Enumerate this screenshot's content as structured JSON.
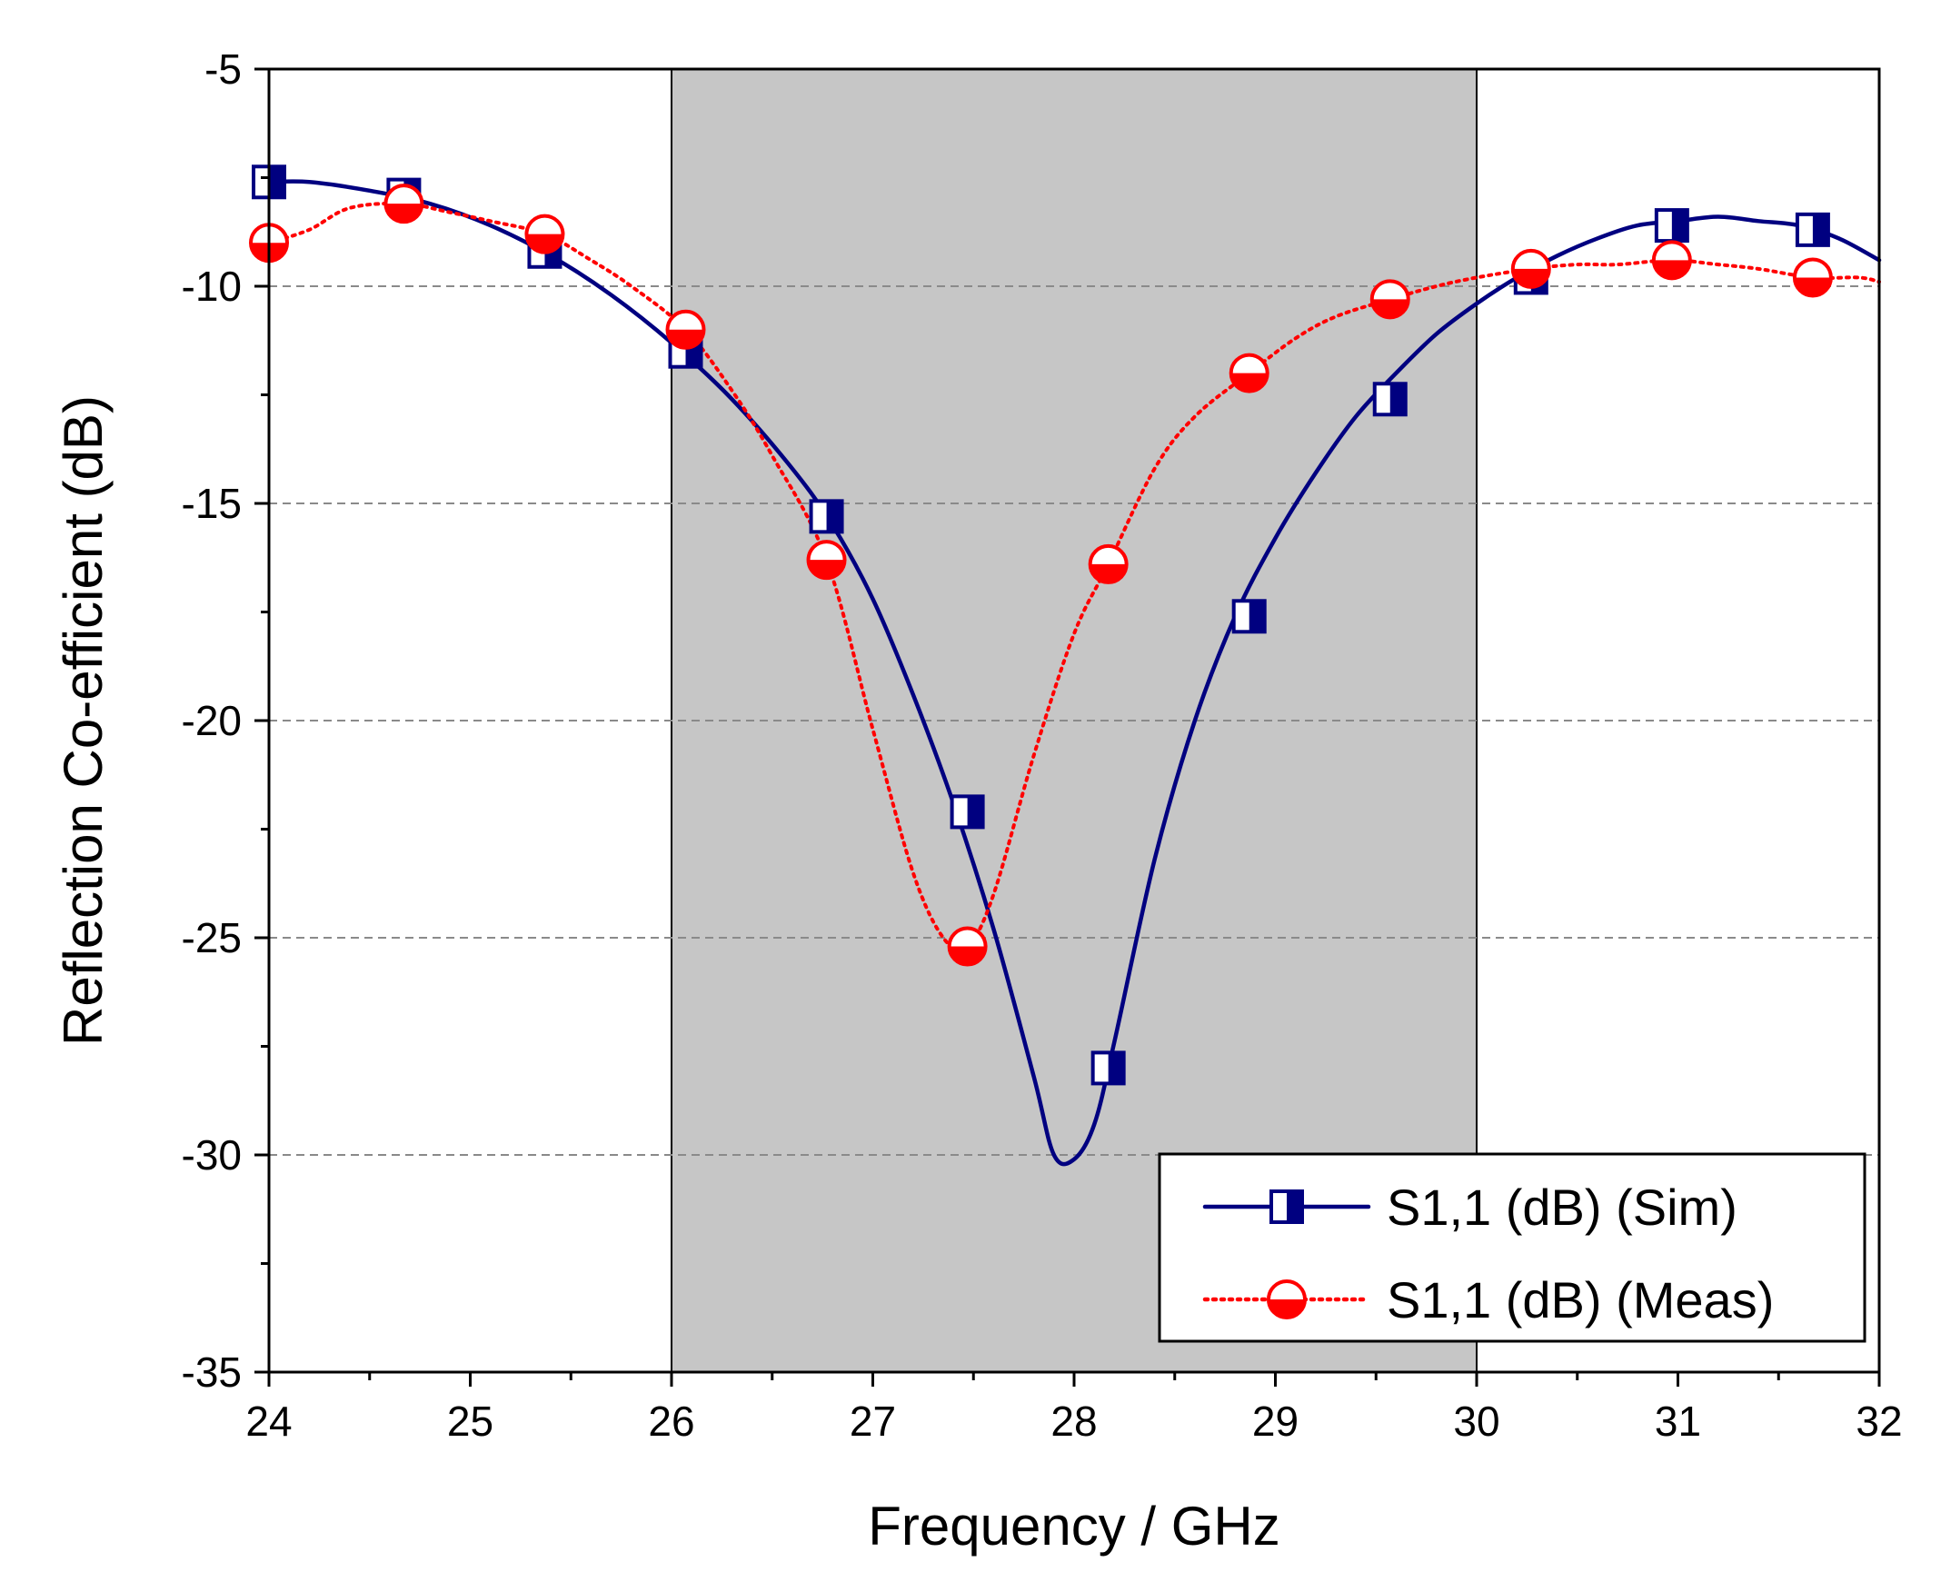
{
  "chart_data": {
    "type": "line",
    "title": "",
    "xlabel": "Frequency / GHz",
    "ylabel": "Reflection Co-efficient (dB)",
    "xlim": [
      24,
      32
    ],
    "ylim": [
      -35,
      -5
    ],
    "xticks": [
      24,
      25,
      26,
      27,
      28,
      29,
      30,
      31,
      32
    ],
    "yticks": [
      -35,
      -30,
      -25,
      -20,
      -15,
      -10,
      -5
    ],
    "xtick_labels": [
      "24",
      "25",
      "26",
      "27",
      "28",
      "29",
      "30",
      "31",
      "32"
    ],
    "ytick_labels": [
      "-35",
      "-30",
      "-25",
      "-20",
      "-15",
      "-10",
      "-5"
    ],
    "gridlines_y": [
      -30,
      -25,
      -20,
      -15,
      -10
    ],
    "grid": "horizontal dashed",
    "highlight_band": {
      "x_start": 26,
      "x_end": 30,
      "color": "#c6c6c6"
    },
    "legend_position": "bottom-right",
    "series": [
      {
        "name": "S1,1 (dB) (Sim)",
        "color": "#000080",
        "line_style": "solid",
        "marker": "half-filled-square",
        "x": [
          24.0,
          24.2,
          24.5,
          24.8,
          25.1,
          25.4,
          25.7,
          26.0,
          26.3,
          26.6,
          26.8,
          27.0,
          27.2,
          27.4,
          27.6,
          27.8,
          27.9,
          28.0,
          28.1,
          28.2,
          28.4,
          28.6,
          28.8,
          29.0,
          29.2,
          29.4,
          29.6,
          29.8,
          30.0,
          30.2,
          30.4,
          30.6,
          30.8,
          31.0,
          31.2,
          31.4,
          31.6,
          31.8,
          32.0
        ],
        "values": [
          -7.6,
          -7.6,
          -7.8,
          -8.1,
          -8.6,
          -9.3,
          -10.2,
          -11.3,
          -12.6,
          -14.2,
          -15.5,
          -17.2,
          -19.4,
          -21.9,
          -24.8,
          -28.2,
          -30.0,
          -30.1,
          -29.3,
          -27.4,
          -23.2,
          -20.0,
          -17.6,
          -15.8,
          -14.3,
          -13.0,
          -12.0,
          -11.1,
          -10.4,
          -9.8,
          -9.3,
          -8.9,
          -8.6,
          -8.5,
          -8.4,
          -8.5,
          -8.6,
          -8.9,
          -9.4
        ],
        "marker_x": [
          24.0,
          24.67,
          25.37,
          26.07,
          26.77,
          27.47,
          28.17,
          28.87,
          29.57,
          30.27,
          30.97,
          31.67
        ],
        "marker_values": [
          -7.6,
          -7.9,
          -9.2,
          -11.5,
          -15.3,
          -22.1,
          -28.0,
          -17.6,
          -12.6,
          -9.8,
          -8.6,
          -8.7
        ]
      },
      {
        "name": "S1,1 (dB) (Meas)",
        "color": "#ff0000",
        "line_style": "dotted",
        "marker": "half-filled-circle",
        "x": [
          24.0,
          24.2,
          24.4,
          24.67,
          24.9,
          25.1,
          25.37,
          25.6,
          25.8,
          26.07,
          26.3,
          26.5,
          26.77,
          27.0,
          27.2,
          27.35,
          27.47,
          27.6,
          27.8,
          28.0,
          28.17,
          28.4,
          28.6,
          28.87,
          29.1,
          29.3,
          29.57,
          29.8,
          30.0,
          30.27,
          30.5,
          30.7,
          30.97,
          31.2,
          31.4,
          31.67,
          31.9,
          32.0
        ],
        "values": [
          -9.0,
          -8.7,
          -8.2,
          -8.1,
          -8.3,
          -8.5,
          -8.8,
          -9.4,
          -10.0,
          -11.0,
          -12.4,
          -13.9,
          -16.3,
          -20.2,
          -23.5,
          -25.0,
          -25.2,
          -24.0,
          -20.8,
          -18.0,
          -16.4,
          -14.2,
          -13.0,
          -12.0,
          -11.2,
          -10.7,
          -10.3,
          -10.0,
          -9.8,
          -9.6,
          -9.5,
          -9.5,
          -9.4,
          -9.5,
          -9.6,
          -9.8,
          -9.8,
          -9.9
        ],
        "marker_x": [
          24.0,
          24.67,
          25.37,
          26.07,
          26.77,
          27.47,
          28.17,
          28.87,
          29.57,
          30.27,
          30.97,
          31.67
        ],
        "marker_values": [
          -9.0,
          -8.1,
          -8.8,
          -11.0,
          -16.3,
          -25.2,
          -16.4,
          -12.0,
          -10.3,
          -9.6,
          -9.4,
          -9.8
        ]
      }
    ]
  }
}
